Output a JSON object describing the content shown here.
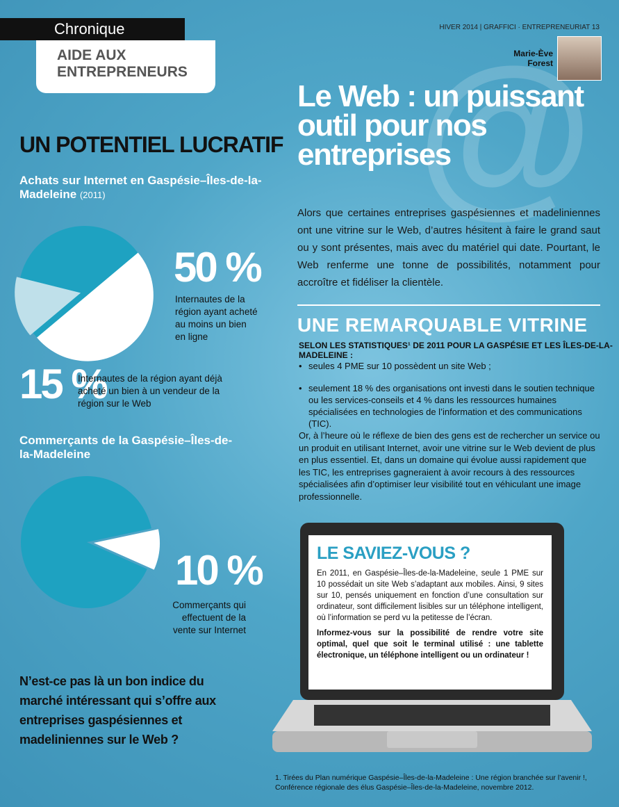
{
  "header": {
    "section": "Chronique",
    "column": "AIDE AUX ENTREPRENEURS",
    "issue": "HIVER 2014 | GRAFFICI · ENTREPRENEURIAT  13",
    "author": "Marie-Ève Forest"
  },
  "infographic": {
    "title": "UN POTENTIEL LUCRATIF",
    "pie1": {
      "title": "Achats sur Internet en Gaspésie–Îles-de-la-Madeleine",
      "year": "(2011)",
      "values": [
        50,
        15
      ],
      "value_labels": [
        "50 %",
        "15 %"
      ],
      "descriptions": [
        "Internautes de la région ayant acheté au moins un bien en ligne",
        "Internautes de la région ayant déjà acheté un bien à un vendeur de la région sur le Web"
      ]
    },
    "pie2": {
      "title": "Commerçants de la Gaspésie–Îles-de-la-Madeleine",
      "values": [
        10
      ],
      "value_labels": [
        "10 %"
      ],
      "descriptions": [
        "Commerçants qui effectuent de la vente sur Internet"
      ]
    },
    "conclusion": "N’est-ce pas là un bon indice du marché intéressant qui s’offre aux entreprises gaspésiennes et madeliniennes sur le Web ?"
  },
  "article": {
    "title": "Le Web : un puissant outil pour nos entreprises",
    "intro": "Alors que certaines entreprises gaspésiennes et madeliniennes ont une vitrine sur le Web, d’autres hésitent à faire le grand saut ou y sont présentes, mais avec du matériel qui date. Pourtant, le Web renferme une tonne de possibilités, notamment pour accroître et fidéliser la clientèle.",
    "heading": "UNE REMARQUABLE VITRINE",
    "subheading": "SELON LES STATISTIQUES¹ DE 2011 POUR LA GASPÉSIE ET LES ÎLES-DE-LA-MADELEINE :",
    "bullets": [
      "seules 4 PME sur 10 possèdent un site Web ;",
      "seulement 18 % des organisations ont investi dans le soutien technique ou les services-conseils et 4 % dans les ressources humaines spécialisées en technologies de l’information et des communications (TIC)."
    ],
    "paragraph": "Or, à l’heure où le réflexe de bien des gens est de rechercher un service ou un produit en utilisant Internet, avoir une vitrine sur le Web devient de plus en plus essentiel. Et, dans un domaine qui évolue aussi rapidement que les TIC, les entreprises gagneraient à avoir recours à des ressources spécialisées afin d’optimiser leur visibilité tout en véhiculant une image professionnelle.",
    "sidebar": {
      "title": "LE SAVIEZ-VOUS ?",
      "paragraphs": [
        "En 2011, en Gaspésie–Îles-de-la-Madeleine, seule 1 PME sur 10 possédait un site Web s’adaptant aux mobiles. Ainsi, 9 sites sur 10, pensés uniquement en fonction d’une consultation sur ordinateur, sont difficilement lisibles sur un téléphone intelligent, où l’information se perd vu la petitesse de l’écran.",
        "Informez-vous sur la possibilité de rendre votre site optimal, quel que soit le terminal utilisé : une tablette électronique, un téléphone intelligent ou un ordinateur !"
      ]
    },
    "footnote": "1. Tirées du Plan numérique Gaspésie–Îles-de-la-Madeleine : Une région branchée sur l’avenir !, Conférence régionale des élus Gaspésie–Îles-de-la-Madeleine, novembre 2012."
  }
}
